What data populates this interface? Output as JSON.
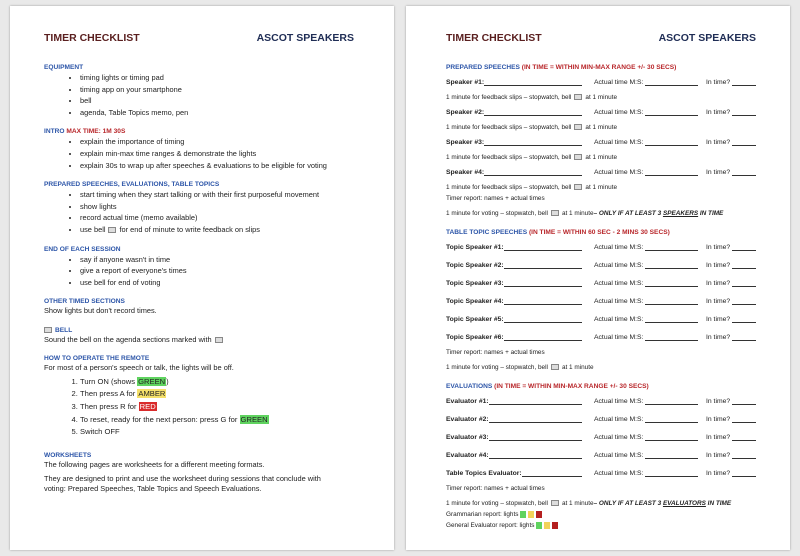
{
  "left": {
    "title": "TIMER CHECKLIST",
    "org": "ASCOT SPEAKERS",
    "equipment": {
      "heading": "EQUIPMENT",
      "items": [
        "timing lights or timing pad",
        "timing app on your smartphone",
        "bell",
        "agenda, Table Topics memo, pen"
      ]
    },
    "intro": {
      "heading": "INTRO",
      "heading_red": "MAX TIME: 1M 30S",
      "items": [
        "explain the importance of timing",
        "explain min-max time ranges & demonstrate the lights",
        "explain 30s to wrap up after speeches & evaluations to be eligible for voting"
      ]
    },
    "prepared": {
      "heading": "PREPARED SPEECHES, EVALUATIONS, TABLE TOPICS",
      "items": [
        "start timing when they start talking or with their first purposeful movement",
        "show lights",
        "record actual time (memo available)"
      ],
      "bell_item_pre": "use bell",
      "bell_item_post": "for end of minute to write feedback on slips"
    },
    "end": {
      "heading": "END OF EACH SESSION",
      "items": [
        "say if anyone wasn't in time",
        "give a report of everyone's times",
        "use bell for end of voting"
      ]
    },
    "other": {
      "heading": "OTHER TIMED SECTIONS",
      "text": "Show lights but don't record times."
    },
    "bell": {
      "heading": "BELL",
      "text": "Sound the bell on the agenda sections marked with"
    },
    "remote": {
      "heading": "HOW TO OPERATE THE REMOTE",
      "intro": "For most of a person's speech or talk, the lights will be off.",
      "s1": "Turn ON (shows ",
      "s1h": "GREEN",
      "s1e": ")",
      "s2": "Then press A for ",
      "s2h": "AMBER",
      "s3": "Then press R for ",
      "s3h": "RED",
      "s4": "To reset, ready for the next person: press G for ",
      "s4h": "GREEN",
      "s5": "Switch OFF"
    },
    "worksheets": {
      "heading": "WORKSHEETS",
      "p1": "The following pages are worksheets for a different meeting formats.",
      "p2": "They are designed to print and use the worksheet during sessions that conclude with voting: Prepared Speeches, Table Topics and Speech Evaluations."
    }
  },
  "right": {
    "title": "TIMER CHECKLIST",
    "org": "ASCOT SPEAKERS",
    "actual_label": "Actual time M:S:",
    "intime_label": "In time?",
    "feedback_pre": "1 minute for feedback slips – stopwatch, bell",
    "feedback_post": "at 1 minute",
    "timer_report": "Timer report: names + actual times",
    "voting_pre": "1 minute for voting – stopwatch, bell",
    "voting_post": "at 1 minute",
    "prepared": {
      "heading": "PREPARED SPEECHES",
      "heading_red": "(IN TIME = WITHIN MIN-MAX RANGE +/- 30 SECS)",
      "rows": [
        "Speaker #1:",
        "Speaker #2:",
        "Speaker #3:",
        "Speaker #4:"
      ],
      "voting_cond_pre": "– ONLY IF AT LEAST 3 ",
      "voting_cond_u": "SPEAKERS",
      "voting_cond_post": " IN TIME"
    },
    "topics": {
      "heading": "TABLE TOPIC SPEECHES",
      "heading_red": "(IN TIME = WITHIN 60 SEC - 2 MINS 30 SECS)",
      "rows": [
        "Topic Speaker #1:",
        "Topic Speaker #2:",
        "Topic Speaker #3:",
        "Topic Speaker #4:",
        "Topic Speaker #5:",
        "Topic Speaker #6:"
      ]
    },
    "evaluations": {
      "heading": "EVALUATIONS",
      "heading_red": "(IN TIME = WITHIN MIN-MAX RANGE +/- 30 SECS)",
      "rows": [
        "Evaluator #1:",
        "Evaluator #2:",
        "Evaluator #3:",
        "Evaluator #4:",
        "Table Topics Evaluator:"
      ],
      "voting_cond_pre": "– ONLY IF AT LEAST 3 ",
      "voting_cond_u": "EVALUATORS",
      "voting_cond_post": " IN TIME"
    },
    "grammarian": "Grammarian report: lights",
    "general_evaluator": "General Evaluator report: lights",
    "light_colors": [
      "#5fd35f",
      "#f2d35a",
      "#b52020"
    ]
  }
}
